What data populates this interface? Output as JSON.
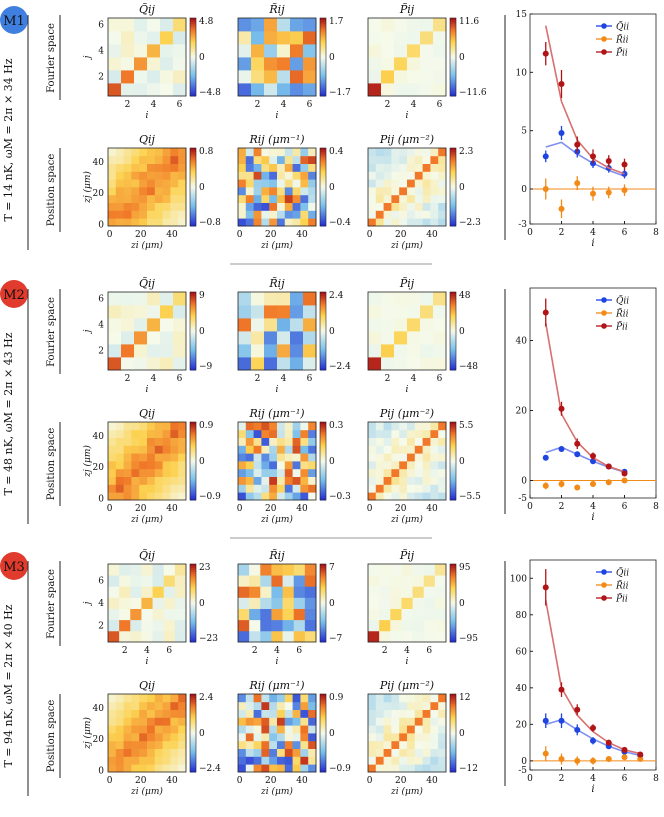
{
  "rows": [
    {
      "badge": "M1",
      "badge_color": "#3f7fe0",
      "side_label": "T = 14 nK, ωM = 2π × 34 Hz",
      "fourier_label": "Fourier space",
      "position_label": "Position space",
      "n": 6,
      "hm_top": [
        {
          "title": "Q̃ij",
          "cb_max": "4.8",
          "cb_mid": "0",
          "cb_min": "−4.8"
        },
        {
          "title": "R̃ij",
          "cb_max": "1.7",
          "cb_mid": "0",
          "cb_min": "−1.7"
        },
        {
          "title": "P̃ij",
          "cb_max": "11.6",
          "cb_mid": "0",
          "cb_min": "−11.6"
        }
      ],
      "hm_bot": [
        {
          "title": "Qij",
          "cb_max": "0.8",
          "cb_mid": "0",
          "cb_min": "−0.8"
        },
        {
          "title": "Rij (μm⁻¹)",
          "cb_max": "0.4",
          "cb_mid": "0",
          "cb_min": "−0.4"
        },
        {
          "title": "Pij (μm⁻²)",
          "cb_max": "2.3",
          "cb_mid": "0",
          "cb_min": "−2.3"
        }
      ],
      "fourier_xticks": [
        "2",
        "4",
        "6"
      ],
      "fourier_yticks": [
        "6",
        "4",
        "2"
      ],
      "pos_xticks": [
        "0",
        "20",
        "40"
      ],
      "pos_yticks": [
        "40",
        "20",
        "0"
      ],
      "xlabel_fourier": "i",
      "ylabel_fourier": "j",
      "xlabel_pos": "zi (μm)",
      "ylabel_pos": "zj (μm)"
    },
    {
      "badge": "M2",
      "badge_color": "#e03b2d",
      "side_label": "T = 48 nK, ωM = 2π × 43 Hz",
      "fourier_label": "Fourier space",
      "position_label": "Position space",
      "n": 6,
      "hm_top": [
        {
          "title": "Q̃ij",
          "cb_max": "9",
          "cb_mid": "0",
          "cb_min": "−9"
        },
        {
          "title": "R̃ij",
          "cb_max": "2.4",
          "cb_mid": "0",
          "cb_min": "−2.4"
        },
        {
          "title": "P̃ij",
          "cb_max": "48",
          "cb_mid": "0",
          "cb_min": "−48"
        }
      ],
      "hm_bot": [
        {
          "title": "Qij",
          "cb_max": "0.9",
          "cb_mid": "0",
          "cb_min": "−0.9"
        },
        {
          "title": "Rij (μm⁻¹)",
          "cb_max": "0.3",
          "cb_mid": "0",
          "cb_min": "−0.3"
        },
        {
          "title": "Pij (μm⁻²)",
          "cb_max": "5.5",
          "cb_mid": "0",
          "cb_min": "−5.5"
        }
      ],
      "fourier_xticks": [
        "2",
        "4",
        "6"
      ],
      "fourier_yticks": [
        "6",
        "4",
        "2"
      ],
      "pos_xticks": [
        "0",
        "20",
        "40"
      ],
      "pos_yticks": [
        "40",
        "20",
        "0"
      ],
      "xlabel_fourier": "i",
      "ylabel_fourier": "j",
      "xlabel_pos": "zi (μm)",
      "ylabel_pos": "zj (μm)"
    },
    {
      "badge": "M3",
      "badge_color": "#e03b2d",
      "side_label": "T = 94 nK, ωM = 2π × 40 Hz",
      "fourier_label": "Fourier space",
      "position_label": "Position space",
      "n": 7,
      "hm_top": [
        {
          "title": "Q̃ij",
          "cb_max": "23",
          "cb_mid": "0",
          "cb_min": "−23"
        },
        {
          "title": "R̃ij",
          "cb_max": "7",
          "cb_mid": "0",
          "cb_min": "−7"
        },
        {
          "title": "P̃ij",
          "cb_max": "95",
          "cb_mid": "0",
          "cb_min": "−95"
        }
      ],
      "hm_bot": [
        {
          "title": "Qij",
          "cb_max": "2.4",
          "cb_mid": "0",
          "cb_min": "−2.4"
        },
        {
          "title": "Rij (μm⁻¹)",
          "cb_max": "0.9",
          "cb_mid": "0",
          "cb_min": "−0.9"
        },
        {
          "title": "Pij (μm⁻²)",
          "cb_max": "12",
          "cb_mid": "0",
          "cb_min": "−12"
        }
      ],
      "fourier_xticks": [
        "2",
        "4",
        "6"
      ],
      "fourier_yticks": [
        "6",
        "4",
        "2"
      ],
      "pos_xticks": [
        "0",
        "20",
        "40"
      ],
      "pos_yticks": [
        "40",
        "20",
        "0"
      ],
      "xlabel_fourier": "i",
      "ylabel_fourier": "j",
      "xlabel_pos": "zi (μm)",
      "ylabel_pos": "zj (μm)"
    }
  ],
  "chart_data": [
    {
      "type": "line",
      "panel": "M1",
      "xlabel": "i",
      "xlim": [
        0,
        8
      ],
      "ylim": [
        -3,
        15
      ],
      "xticks": [
        "0",
        "2",
        "4",
        "6",
        "8"
      ],
      "yticks": [
        "-3",
        "0",
        "5",
        "10",
        "15"
      ],
      "legend": [
        "Q̃ii",
        "R̃ii",
        "P̃ii"
      ],
      "legend_position": "top-right",
      "series": [
        {
          "name": "Q̃ii",
          "color": "#1f45e0",
          "x": [
            1,
            2,
            3,
            4,
            5,
            6
          ],
          "y": [
            2.8,
            4.8,
            3.2,
            2.2,
            1.8,
            1.3
          ],
          "err": [
            0.5,
            0.6,
            0.5,
            0.4,
            0.4,
            0.4
          ],
          "model": [
            3.6,
            4.0,
            3.0,
            2.2,
            1.6,
            1.1
          ]
        },
        {
          "name": "R̃ii",
          "color": "#f28a18",
          "x": [
            1,
            2,
            3,
            4,
            5,
            6
          ],
          "y": [
            0.0,
            -1.7,
            0.5,
            -0.4,
            -0.3,
            -0.1
          ],
          "err": [
            0.9,
            0.8,
            0.6,
            0.6,
            0.5,
            0.5
          ],
          "model": [
            0,
            0,
            0,
            0,
            0,
            0
          ]
        },
        {
          "name": "P̃ii",
          "color": "#b01416",
          "x": [
            1,
            2,
            3,
            4,
            5,
            6
          ],
          "y": [
            11.6,
            9.0,
            3.8,
            2.8,
            2.4,
            2.1
          ],
          "err": [
            1.0,
            1.2,
            0.7,
            0.6,
            0.5,
            0.5
          ],
          "model": [
            14.0,
            7.5,
            4.2,
            2.6,
            1.8,
            1.3
          ]
        }
      ]
    },
    {
      "type": "line",
      "panel": "M2",
      "xlabel": "i",
      "xlim": [
        0,
        8
      ],
      "ylim": [
        -5,
        55
      ],
      "xticks": [
        "0",
        "2",
        "4",
        "6",
        "8"
      ],
      "yticks": [
        "-5",
        "0",
        "20",
        "40"
      ],
      "legend": [
        "Q̃ii",
        "R̃ii",
        "P̃ii"
      ],
      "legend_position": "top-right",
      "series": [
        {
          "name": "Q̃ii",
          "color": "#1f45e0",
          "x": [
            1,
            2,
            3,
            4,
            5,
            6
          ],
          "y": [
            6.5,
            9.0,
            7.5,
            5.5,
            4.0,
            2.5
          ],
          "err": [
            0.8,
            0.8,
            0.8,
            0.6,
            0.5,
            0.5
          ],
          "model": [
            8.0,
            9.5,
            7.5,
            5.5,
            3.8,
            2.4
          ]
        },
        {
          "name": "R̃ii",
          "color": "#f28a18",
          "x": [
            1,
            2,
            3,
            4,
            5,
            6
          ],
          "y": [
            -1.5,
            -1.0,
            -2.0,
            -1.0,
            -0.5,
            0.0
          ],
          "err": [
            1.0,
            1.0,
            0.8,
            0.7,
            0.6,
            0.5
          ],
          "model": [
            0,
            0,
            0,
            0,
            0,
            0
          ]
        },
        {
          "name": "P̃ii",
          "color": "#b01416",
          "x": [
            1,
            2,
            3,
            4,
            5,
            6
          ],
          "y": [
            48.0,
            20.5,
            10.5,
            7.0,
            4.0,
            2.0
          ],
          "err": [
            4.0,
            2.0,
            1.5,
            1.0,
            0.8,
            0.6
          ],
          "model": [
            45.0,
            19.0,
            11.0,
            6.5,
            4.0,
            2.5
          ]
        }
      ]
    },
    {
      "type": "line",
      "panel": "M3",
      "xlabel": "i",
      "xlim": [
        0,
        8
      ],
      "ylim": [
        -5,
        110
      ],
      "xticks": [
        "0",
        "2",
        "4",
        "6",
        "8"
      ],
      "yticks": [
        "-5",
        "0",
        "20",
        "40",
        "60",
        "80",
        "100"
      ],
      "legend": [
        "Q̃ii",
        "R̃ii",
        "P̃ii"
      ],
      "legend_position": "top-right",
      "series": [
        {
          "name": "Q̃ii",
          "color": "#1f45e0",
          "x": [
            1,
            2,
            3,
            4,
            5,
            6,
            7
          ],
          "y": [
            22.0,
            22.0,
            17.0,
            11.0,
            8.0,
            5.0,
            3.0
          ],
          "err": [
            4.0,
            4.0,
            3.0,
            2.0,
            1.5,
            1.0,
            1.0
          ],
          "model": [
            20.0,
            22.5,
            17.0,
            12.0,
            8.0,
            5.0,
            3.0
          ]
        },
        {
          "name": "R̃ii",
          "color": "#f28a18",
          "x": [
            1,
            2,
            3,
            4,
            5,
            6,
            7
          ],
          "y": [
            4.0,
            1.0,
            0.0,
            0.0,
            1.0,
            2.0,
            1.0
          ],
          "err": [
            4.0,
            3.0,
            2.5,
            2.0,
            1.5,
            1.5,
            1.0
          ],
          "model": [
            0,
            0,
            0,
            0,
            0,
            0,
            0
          ]
        },
        {
          "name": "P̃ii",
          "color": "#b01416",
          "x": [
            1,
            2,
            3,
            4,
            5,
            6,
            7
          ],
          "y": [
            95.0,
            39.0,
            28.0,
            18.0,
            10.0,
            6.0,
            3.5
          ],
          "err": [
            10.0,
            4.0,
            3.0,
            2.0,
            1.5,
            1.0,
            1.0
          ],
          "model": [
            88.0,
            40.0,
            25.0,
            16.0,
            10.0,
            6.0,
            4.0
          ]
        }
      ]
    }
  ]
}
